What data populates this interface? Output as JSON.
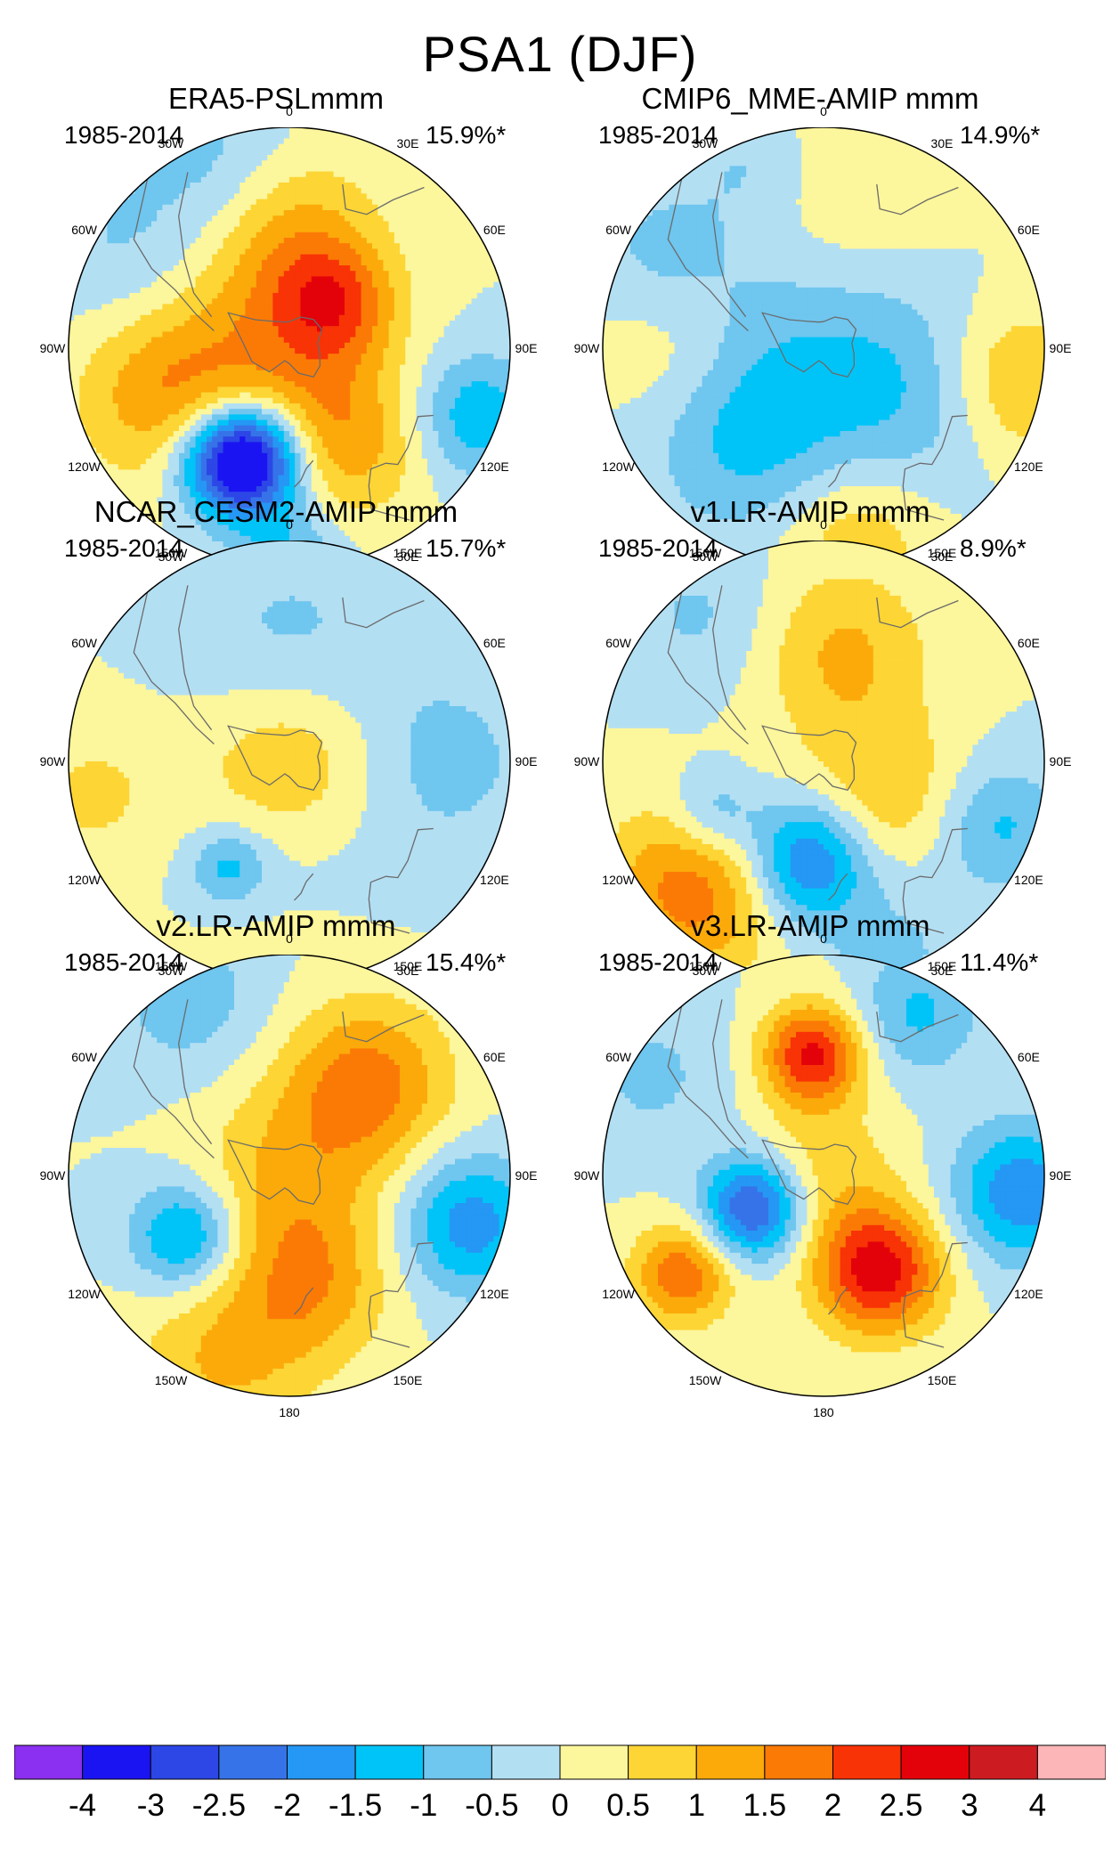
{
  "figure": {
    "title": "PSA1 (DJF)"
  },
  "chart_data": {
    "type": "heatmap",
    "projection": "south-polar stereographic",
    "title": "PSA1 (DJF)",
    "lon_labels": [
      "0",
      "30E",
      "60E",
      "90E",
      "120E",
      "150E",
      "180",
      "150W",
      "120W",
      "90W",
      "60W",
      "30W"
    ],
    "colorbar": {
      "levels": [
        "-4",
        "-3",
        "-2.5",
        "-2",
        "-1.5",
        "-1",
        "-0.5",
        "0",
        "0.5",
        "1",
        "1.5",
        "2",
        "2.5",
        "3",
        "4"
      ],
      "colors": [
        "#8b2ff0",
        "#1b14f2",
        "#2c47e6",
        "#3673e8",
        "#2597f4",
        "#00c4f7",
        "#6fc6ef",
        "#b3dff3",
        "#fcf69c",
        "#fdd534",
        "#fbaa0a",
        "#fb7a06",
        "#f83305",
        "#e4020a",
        "#cd1c21",
        "#fcb6b8"
      ]
    },
    "panels": [
      {
        "name": "ERA5-PSLmmm",
        "period": "1985-2014",
        "variance_explained": "15.9%*",
        "field": [
          {
            "lon": 200,
            "r": 0.53,
            "v": -3.5,
            "s": 0.17
          },
          {
            "lon": 210,
            "r": 0.6,
            "v": -1.6,
            "s": 0.18
          },
          {
            "lon": 250,
            "r": 0.55,
            "v": 1.6,
            "s": 0.3
          },
          {
            "lon": 150,
            "r": 0.5,
            "v": 1.2,
            "s": 0.25
          },
          {
            "lon": 0,
            "r": 0.5,
            "v": 1.2,
            "s": 0.28
          },
          {
            "lon": 45,
            "r": 0.3,
            "v": 1.4,
            "s": 0.18
          },
          {
            "lon": 90,
            "r": 0.05,
            "v": 1.0,
            "s": 0.3
          },
          {
            "lon": 110,
            "r": 0.9,
            "v": -1.4,
            "s": 0.2
          },
          {
            "lon": 180,
            "r": 0.92,
            "v": -1.0,
            "s": 0.18
          },
          {
            "lon": 300,
            "r": 0.85,
            "v": -0.6,
            "s": 0.3
          },
          {
            "lon": 340,
            "r": 0.9,
            "v": -0.7,
            "s": 0.25
          }
        ]
      },
      {
        "name": "CMIP6_MME-AMIP  mmm",
        "period": "1985-2014",
        "variance_explained": "14.9%*",
        "field": [
          {
            "lon": 20,
            "r": 0.0,
            "v": -0.9,
            "s": 0.45
          },
          {
            "lon": 220,
            "r": 0.55,
            "v": -0.9,
            "s": 0.3
          },
          {
            "lon": 120,
            "r": 0.5,
            "v": -0.6,
            "s": 0.3
          },
          {
            "lon": 100,
            "r": 0.88,
            "v": 1.2,
            "s": 0.25
          },
          {
            "lon": 170,
            "r": 0.85,
            "v": 1.0,
            "s": 0.25
          },
          {
            "lon": 270,
            "r": 0.7,
            "v": 0.6,
            "s": 0.25
          },
          {
            "lon": 340,
            "r": 0.9,
            "v": -0.6,
            "s": 0.2
          },
          {
            "lon": 10,
            "r": 0.7,
            "v": 0.7,
            "s": 0.35
          },
          {
            "lon": 300,
            "r": 0.85,
            "v": -0.6,
            "s": 0.25
          }
        ]
      },
      {
        "name": "NCAR_CESM2-AMIP  mmm",
        "period": "1985-2014",
        "variance_explained": "15.7%*",
        "field": [
          {
            "lon": 0,
            "r": 0.0,
            "v": 1.2,
            "s": 0.3
          },
          {
            "lon": 0,
            "r": 0.5,
            "v": -0.7,
            "s": 0.35
          },
          {
            "lon": 180,
            "r": 0.55,
            "v": -0.5,
            "s": 0.35
          },
          {
            "lon": 210,
            "r": 0.55,
            "v": -1.1,
            "s": 0.12
          },
          {
            "lon": 180,
            "r": 1.0,
            "v": 0.6,
            "s": 0.35
          },
          {
            "lon": 260,
            "r": 0.9,
            "v": 0.6,
            "s": 0.25
          },
          {
            "lon": 90,
            "r": 0.7,
            "v": -0.7,
            "s": 0.3
          }
        ]
      },
      {
        "name": "v1.LR-AMIP  mmm",
        "period": "1985-2014",
        "variance_explained": "8.9%*",
        "field": [
          {
            "lon": 190,
            "r": 0.45,
            "v": -2.3,
            "s": 0.2
          },
          {
            "lon": 245,
            "r": 0.55,
            "v": -1.1,
            "s": 0.14
          },
          {
            "lon": 225,
            "r": 0.82,
            "v": 1.8,
            "s": 0.28
          },
          {
            "lon": 10,
            "r": 0.5,
            "v": 1.1,
            "s": 0.28
          },
          {
            "lon": 120,
            "r": 0.3,
            "v": 1.0,
            "s": 0.25
          },
          {
            "lon": 110,
            "r": 0.85,
            "v": -1.1,
            "s": 0.2
          },
          {
            "lon": 160,
            "r": 0.92,
            "v": -0.6,
            "s": 0.25
          },
          {
            "lon": 320,
            "r": 0.85,
            "v": -0.6,
            "s": 0.25
          }
        ]
      },
      {
        "name": "v2.LR-AMIP  mmm",
        "period": "1985-2014",
        "variance_explained": "15.4%*",
        "field": [
          {
            "lon": 240,
            "r": 0.55,
            "v": -1.8,
            "s": 0.17
          },
          {
            "lon": 40,
            "r": 0.55,
            "v": 1.7,
            "s": 0.26
          },
          {
            "lon": 170,
            "r": 0.5,
            "v": 1.3,
            "s": 0.25
          },
          {
            "lon": 200,
            "r": 0.9,
            "v": 1.0,
            "s": 0.28
          },
          {
            "lon": 105,
            "r": 0.85,
            "v": -1.8,
            "s": 0.22
          },
          {
            "lon": 330,
            "r": 0.92,
            "v": -0.8,
            "s": 0.25
          },
          {
            "lon": 0,
            "r": 0.0,
            "v": 1.0,
            "s": 0.3
          }
        ]
      },
      {
        "name": "v3.LR-AMIP  mmm",
        "period": "1985-2014",
        "variance_explained": "11.4%*",
        "field": [
          {
            "lon": 245,
            "r": 0.35,
            "v": -2.8,
            "s": 0.16
          },
          {
            "lon": 150,
            "r": 0.5,
            "v": 2.8,
            "s": 0.2
          },
          {
            "lon": 355,
            "r": 0.55,
            "v": 2.6,
            "s": 0.16
          },
          {
            "lon": 235,
            "r": 0.78,
            "v": 1.9,
            "s": 0.16
          },
          {
            "lon": 95,
            "r": 0.9,
            "v": -1.9,
            "s": 0.22
          },
          {
            "lon": 30,
            "r": 0.85,
            "v": -1.1,
            "s": 0.2
          },
          {
            "lon": 300,
            "r": 0.9,
            "v": -0.6,
            "s": 0.25
          },
          {
            "lon": 0,
            "r": 0.0,
            "v": 0.8,
            "s": 0.25
          }
        ]
      }
    ]
  }
}
